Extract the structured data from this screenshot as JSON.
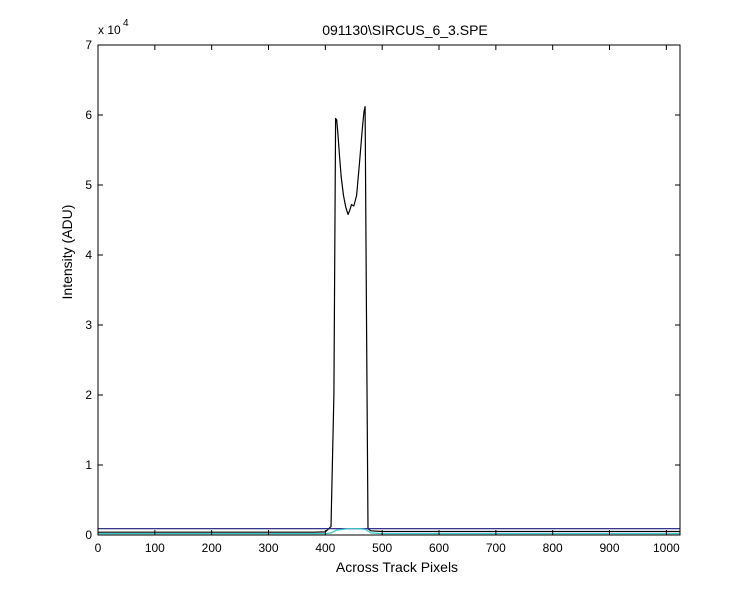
{
  "chart_data": {
    "type": "line",
    "title": "091130\\SIRCUS_6_3.SPE",
    "xlabel": "Across Track Pixels",
    "ylabel": "Intensity (ADU)",
    "xlim": [
      0,
      1024
    ],
    "ylim": [
      0,
      70000
    ],
    "y_exponent_label": "x 10",
    "y_exponent_power": "4",
    "xticks": [
      0,
      100,
      200,
      300,
      400,
      500,
      600,
      700,
      800,
      900,
      1000
    ],
    "xtick_labels": [
      "0",
      "100",
      "200",
      "300",
      "400",
      "500",
      "600",
      "700",
      "800",
      "900",
      "1000"
    ],
    "yticks": [
      0,
      10000,
      20000,
      30000,
      40000,
      50000,
      60000,
      70000
    ],
    "ytick_labels": [
      "0",
      "1",
      "2",
      "3",
      "4",
      "5",
      "6",
      "7"
    ],
    "grid": false,
    "series": [
      {
        "color": "#000000",
        "x": [
          0,
          380,
          400,
          410,
          415,
          418,
          420,
          422,
          425,
          428,
          432,
          436,
          440,
          443,
          446,
          450,
          455,
          460,
          465,
          468,
          470,
          472,
          475,
          480,
          500,
          1024
        ],
        "y": [
          400,
          400,
          450,
          1200,
          20000,
          59500,
          59300,
          57500,
          54000,
          51000,
          48500,
          46800,
          45800,
          46400,
          47200,
          47000,
          48500,
          53000,
          58000,
          60500,
          61200,
          35000,
          900,
          600,
          500,
          500
        ]
      },
      {
        "color": "#1a1a80",
        "x": [
          0,
          1024
        ],
        "y": [
          900,
          900
        ]
      },
      {
        "color": "#39c8c8",
        "x": [
          0,
          400,
          410,
          420,
          440,
          460,
          470,
          480,
          500,
          1024
        ],
        "y": [
          200,
          200,
          300,
          700,
          900,
          900,
          800,
          300,
          200,
          200
        ]
      }
    ]
  }
}
